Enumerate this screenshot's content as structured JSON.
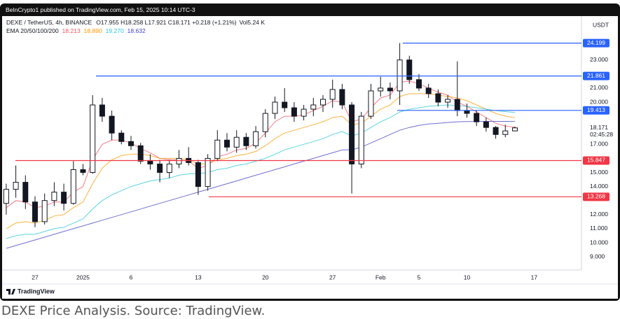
{
  "chart_data": {
    "type": "candlestick",
    "publisher": "BeInCrypto1 published on TradingView.com, Feb 15, 2025 10:14 UTC-3",
    "symbol": "DEXE / TetherUS, 4h, BINANCE",
    "ohlc_text": "O17.955 H18.258 L17.921 C18.171 +0.218 (+1.21%)",
    "volume_text": "Vol5.24 K",
    "currency": "USDT",
    "countdown": "02:45:28",
    "brand": "TradingView",
    "categories": [
      null,
      null,
      null,
      "27",
      null,
      null,
      null,
      null,
      "2025",
      null,
      null,
      null,
      null,
      "6",
      null,
      null,
      null,
      null,
      null,
      null,
      "13",
      null,
      null,
      null,
      null,
      null,
      null,
      "20",
      null,
      null,
      null,
      null,
      null,
      null,
      "27",
      null,
      null,
      null,
      null,
      "Feb",
      null,
      null,
      null,
      "5",
      null,
      null,
      null,
      null,
      "10",
      null,
      null,
      null,
      null,
      null,
      null,
      "17"
    ],
    "open": [
      12.8,
      13.8,
      14.3,
      12.9,
      11.5,
      13.0,
      13.6,
      12.8,
      15.2,
      15.0,
      19.8,
      19.0,
      17.8,
      17.2,
      16.9,
      15.8,
      15.6,
      15.0,
      15.6,
      16.0,
      15.7,
      14.0,
      16.0,
      17.3,
      16.8,
      17.5,
      16.9,
      17.9,
      19.2,
      20.0,
      19.6,
      19.0,
      19.5,
      19.8,
      20.2,
      20.9,
      19.8,
      15.6,
      19.0,
      20.8,
      21.0,
      20.8,
      23.0,
      21.6,
      21.0,
      20.6,
      20.0,
      20.2,
      19.4,
      19.2,
      18.6,
      18.2,
      17.7,
      17.955,
      null,
      null
    ],
    "high": [
      14.2,
      15.5,
      14.8,
      13.3,
      13.5,
      14.3,
      14.2,
      15.8,
      15.6,
      20.5,
      20.3,
      19.4,
      18.0,
      17.6,
      17.1,
      16.3,
      15.9,
      15.9,
      16.6,
      16.8,
      15.9,
      16.3,
      18.0,
      17.8,
      18.0,
      17.8,
      18.3,
      19.5,
      20.4,
      21.0,
      20.0,
      19.8,
      20.3,
      20.5,
      21.6,
      21.3,
      20.0,
      19.3,
      21.3,
      21.8,
      21.4,
      24.2,
      23.3,
      22.0,
      21.3,
      20.9,
      20.5,
      22.9,
      19.9,
      19.4,
      18.9,
      18.3,
      18.4,
      18.258,
      null,
      null
    ],
    "low": [
      12.0,
      13.2,
      12.4,
      11.1,
      11.3,
      12.6,
      12.3,
      12.7,
      14.8,
      14.9,
      18.6,
      17.3,
      17.0,
      16.6,
      15.6,
      15.2,
      14.3,
      14.6,
      15.3,
      15.5,
      13.4,
      13.7,
      15.8,
      16.5,
      16.4,
      16.6,
      16.7,
      17.5,
      18.8,
      19.3,
      18.6,
      18.7,
      19.0,
      19.3,
      19.6,
      19.5,
      13.5,
      15.3,
      18.8,
      20.4,
      20.2,
      19.8,
      21.3,
      20.8,
      20.3,
      19.7,
      19.6,
      19.0,
      18.9,
      18.3,
      17.9,
      17.4,
      17.5,
      17.921,
      null,
      null
    ],
    "close": [
      13.8,
      14.3,
      12.9,
      11.5,
      13.0,
      13.6,
      12.8,
      15.2,
      15.0,
      19.8,
      19.0,
      17.8,
      17.2,
      16.9,
      15.8,
      15.6,
      15.0,
      15.6,
      16.0,
      15.7,
      14.0,
      16.0,
      17.3,
      16.8,
      17.5,
      16.9,
      17.9,
      19.2,
      20.0,
      19.6,
      19.0,
      19.5,
      19.8,
      20.2,
      20.9,
      19.8,
      15.6,
      19.0,
      20.8,
      21.0,
      20.8,
      23.0,
      21.6,
      21.0,
      20.6,
      20.0,
      20.2,
      19.4,
      19.2,
      18.6,
      18.2,
      17.7,
      17.955,
      18.171,
      null,
      null
    ],
    "ema": {
      "label": "EMA 20/50/100/200",
      "lines": [
        {
          "color": "#f7525f",
          "legend_value": "18.213",
          "values": [
            12.5,
            13.0,
            12.9,
            12.5,
            12.6,
            12.9,
            12.9,
            13.6,
            14.0,
            15.9,
            17.0,
            17.3,
            17.3,
            17.1,
            16.7,
            16.4,
            16.0,
            15.9,
            15.9,
            15.8,
            15.3,
            15.5,
            16.1,
            16.3,
            16.6,
            16.7,
            17.1,
            17.8,
            18.6,
            19.0,
            19.0,
            19.1,
            19.4,
            19.7,
            20.1,
            20.0,
            18.6,
            18.8,
            19.6,
            20.3,
            20.5,
            21.4,
            21.5,
            21.3,
            21.0,
            20.7,
            20.5,
            20.0,
            19.7,
            19.3,
            18.9,
            18.5,
            18.3,
            18.213,
            null,
            null
          ]
        },
        {
          "color": "#ff9800",
          "legend_value": "18.890",
          "values": [
            11.0,
            11.4,
            11.5,
            11.4,
            11.6,
            11.9,
            12.0,
            12.5,
            12.9,
            14.2,
            15.3,
            15.9,
            16.2,
            16.3,
            16.3,
            16.2,
            16.0,
            16.0,
            16.0,
            15.9,
            15.6,
            15.6,
            15.9,
            16.0,
            16.2,
            16.3,
            16.5,
            16.9,
            17.4,
            17.8,
            18.0,
            18.2,
            18.4,
            18.6,
            18.9,
            19.0,
            18.4,
            18.5,
            19.0,
            19.5,
            19.8,
            20.4,
            20.6,
            20.6,
            20.6,
            20.5,
            20.4,
            20.3,
            20.1,
            19.8,
            19.5,
            19.2,
            19.0,
            18.89,
            null,
            null
          ]
        },
        {
          "color": "#26c6da",
          "legend_value": "19.270",
          "values": [
            10.3,
            10.5,
            10.6,
            10.6,
            10.8,
            11.0,
            11.1,
            11.4,
            11.7,
            12.4,
            13.0,
            13.4,
            13.7,
            14.0,
            14.2,
            14.4,
            14.5,
            14.6,
            14.8,
            14.9,
            14.9,
            15.0,
            15.2,
            15.3,
            15.5,
            15.6,
            15.8,
            16.0,
            16.3,
            16.6,
            16.8,
            17.0,
            17.2,
            17.4,
            17.7,
            17.9,
            17.6,
            17.8,
            18.2,
            18.6,
            18.9,
            19.3,
            19.5,
            19.6,
            19.7,
            19.75,
            19.8,
            19.75,
            19.7,
            19.6,
            19.5,
            19.4,
            19.33,
            19.27,
            null,
            null
          ]
        },
        {
          "color": "#3f3fc4",
          "legend_value": "18.632",
          "values": [
            9.6,
            9.8,
            10.0,
            10.2,
            10.4,
            10.6,
            10.8,
            11.0,
            11.2,
            11.4,
            11.6,
            11.8,
            12.0,
            12.2,
            12.4,
            12.6,
            12.8,
            13.0,
            13.2,
            13.4,
            13.6,
            13.8,
            14.0,
            14.2,
            14.4,
            14.6,
            14.8,
            15.0,
            15.2,
            15.4,
            15.6,
            15.8,
            16.0,
            16.2,
            16.4,
            16.6,
            16.6,
            16.8,
            17.1,
            17.4,
            17.7,
            18.0,
            18.2,
            18.35,
            18.45,
            18.5,
            18.55,
            18.6,
            18.62,
            18.63,
            18.63,
            18.63,
            18.63,
            18.632,
            null,
            null
          ]
        }
      ]
    },
    "levels": [
      {
        "value": 24.199,
        "color": "#2962ff"
      },
      {
        "value": 21.861,
        "color": "#2962ff"
      },
      {
        "value": 19.413,
        "color": "#2962ff"
      },
      {
        "value": 15.847,
        "color": "#f23645"
      },
      {
        "value": 13.268,
        "color": "#f23645"
      }
    ],
    "ylim": [
      8.06,
      26.02
    ],
    "yticks": [
      {
        "value": 9,
        "label": "9.000"
      },
      {
        "value": 10,
        "label": "10.000"
      },
      {
        "value": 11,
        "label": "11.000"
      },
      {
        "value": 12,
        "label": "12.000"
      },
      {
        "value": 14,
        "label": "14.000"
      },
      {
        "value": 15,
        "label": "15.000"
      },
      {
        "value": 17,
        "label": "17.000"
      },
      {
        "value": 20,
        "label": "20.000"
      },
      {
        "value": 21,
        "label": "21.000"
      },
      {
        "value": 23,
        "label": "23.000"
      }
    ],
    "grid": false,
    "candle_color": "#131722"
  },
  "caption": "DEXE Price Analysis. Source: TradingView."
}
